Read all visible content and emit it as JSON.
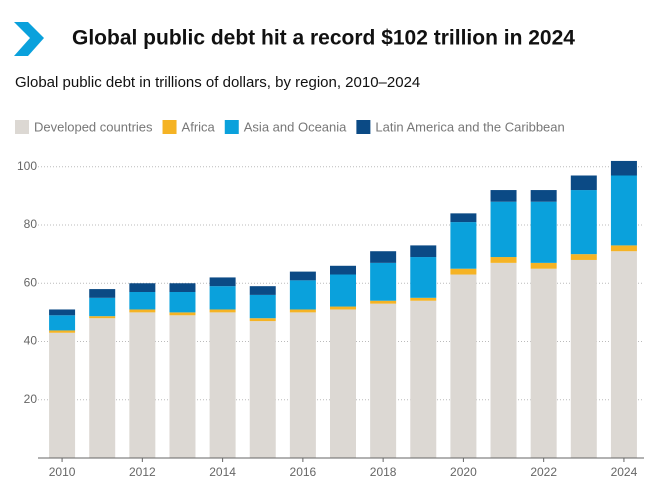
{
  "chart_data": {
    "type": "stacked-bar",
    "title": "Global public debt hit a record $102 trillion in 2024",
    "subtitle": "Global public debt in trillions of dollars, by region, 2010–2024",
    "x": [
      2010,
      2011,
      2012,
      2013,
      2014,
      2015,
      2016,
      2017,
      2018,
      2019,
      2020,
      2021,
      2022,
      2023,
      2024
    ],
    "xlim": [
      2009.4,
      2024.5
    ],
    "xticks": [
      2010,
      2012,
      2014,
      2016,
      2018,
      2020,
      2022,
      2024
    ],
    "ylim": [
      0,
      105
    ],
    "yticks": [
      20,
      40,
      60,
      80,
      100
    ],
    "grid": true,
    "series": [
      {
        "name": "Developed countries",
        "color": "#dcd8d3",
        "values": [
          43,
          48,
          50,
          49,
          50,
          47,
          50,
          51,
          53,
          54,
          63,
          67,
          65,
          68,
          71
        ]
      },
      {
        "name": "Africa",
        "color": "#f5b324",
        "values": [
          0.8,
          0.7,
          1,
          1,
          1,
          1,
          1,
          1,
          1,
          1,
          2,
          2,
          2,
          2,
          2
        ]
      },
      {
        "name": "Asia and Oceania",
        "color": "#0aa1dc",
        "values": [
          5.2,
          6.3,
          6,
          7,
          8,
          8,
          10,
          11,
          13,
          14,
          16,
          19,
          21,
          22,
          24
        ]
      },
      {
        "name": "Latin America and the Caribbean",
        "color": "#0b4a85",
        "values": [
          2,
          3,
          3,
          3,
          3,
          3,
          3,
          3,
          4,
          4,
          3,
          4,
          4,
          5,
          5
        ]
      }
    ]
  }
}
